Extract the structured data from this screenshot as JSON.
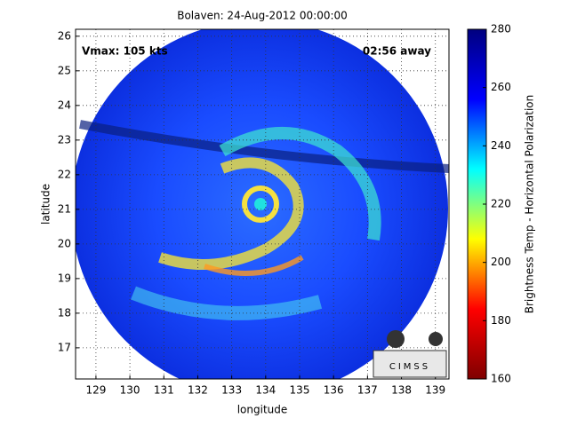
{
  "chart_data": {
    "type": "image",
    "title": "Bolaven: 24-Aug-2012 00:00:00",
    "xlabel": "longitude",
    "ylabel": "latitude",
    "xlim": [
      128.4,
      139.4
    ],
    "ylim": [
      16.1,
      26.2
    ],
    "xticks": [
      129,
      130,
      131,
      132,
      133,
      134,
      135,
      136,
      137,
      138,
      139
    ],
    "yticks": [
      17,
      18,
      19,
      20,
      21,
      22,
      23,
      24,
      25,
      26
    ],
    "grid": true,
    "annotations": [
      "Vmax: 105 kts",
      "02:56 away"
    ],
    "logo": "CIMSS",
    "colorbar": {
      "label": "Brightness Temp - Horizontal Polarization",
      "lim": [
        160,
        280
      ],
      "ticks": [
        160,
        180,
        200,
        220,
        240,
        260,
        280
      ],
      "colormap": [
        "#7f0000",
        "#ff0000",
        "#ffff00",
        "#00ffff",
        "#0000ff",
        "#00007f"
      ]
    }
  }
}
